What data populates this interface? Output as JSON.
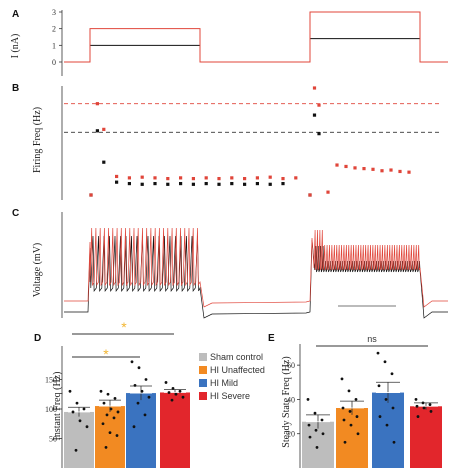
{
  "panels": {
    "a": "A",
    "b": "B",
    "c": "C",
    "d": "D",
    "e": "E"
  },
  "colors": {
    "black": "#111111",
    "red": "#e0453a",
    "sham": "#bdbdbd",
    "unaffected": "#f28a22",
    "mild": "#3a73c0",
    "severe": "#e2262c",
    "star": "#f2b632"
  },
  "chart_data": [
    {
      "id": "A",
      "type": "line",
      "ylabel": "I (nA)",
      "yticks": [
        "3",
        "2",
        "1",
        "0"
      ],
      "ylim": [
        0,
        3
      ],
      "series": [
        {
          "name": "",
          "color": "black",
          "steps": [
            [
              0,
              0
            ],
            [
              1,
              1
            ],
            [
              2,
              0
            ],
            [
              3,
              1.4
            ],
            [
              4,
              0
            ]
          ]
        },
        {
          "name": "",
          "color": "red",
          "steps": [
            [
              0,
              0
            ],
            [
              1,
              2
            ],
            [
              2,
              0
            ],
            [
              3,
              3
            ],
            [
              4,
              0
            ]
          ]
        }
      ]
    },
    {
      "id": "B",
      "type": "scatter",
      "ylabel": "Firing Freq (Hz)",
      "ref_lines": [
        {
          "value": 128,
          "color": "red"
        },
        {
          "value": 88,
          "color": "black"
        }
      ],
      "ylim": [
        0,
        150
      ],
      "series": [
        {
          "name": "",
          "color": "black",
          "points": [
            [
              0,
              0
            ],
            [
              0.5,
              90
            ],
            [
              1,
              46
            ],
            [
              2,
              18
            ],
            [
              3,
              16
            ],
            [
              4,
              15
            ],
            [
              5,
              16
            ],
            [
              6,
              15
            ],
            [
              7,
              16
            ],
            [
              8,
              15
            ],
            [
              9,
              16
            ],
            [
              10,
              15
            ],
            [
              11,
              16
            ],
            [
              12,
              15
            ],
            [
              13,
              16
            ],
            [
              14,
              15
            ],
            [
              15,
              16
            ],
            [
              30,
              0
            ],
            [
              30.5,
              112
            ],
            [
              31,
              86
            ]
          ]
        },
        {
          "name": "",
          "color": "red",
          "points": [
            [
              0,
              0
            ],
            [
              0.5,
              128
            ],
            [
              1,
              92
            ],
            [
              2,
              26
            ],
            [
              3,
              24
            ],
            [
              4,
              25
            ],
            [
              5,
              24
            ],
            [
              6,
              23
            ],
            [
              7,
              24
            ],
            [
              8,
              23
            ],
            [
              9,
              24
            ],
            [
              10,
              23
            ],
            [
              11,
              24
            ],
            [
              12,
              23
            ],
            [
              13,
              24
            ],
            [
              14,
              25
            ],
            [
              15,
              23
            ],
            [
              16,
              24
            ],
            [
              30,
              0
            ],
            [
              30.5,
              150
            ],
            [
              31,
              126
            ],
            [
              32,
              4
            ],
            [
              33,
              42
            ],
            [
              34,
              40
            ],
            [
              35,
              38
            ],
            [
              36,
              37
            ],
            [
              37,
              36
            ],
            [
              38,
              34
            ],
            [
              39,
              35
            ],
            [
              40,
              33
            ],
            [
              41,
              32
            ]
          ]
        }
      ]
    },
    {
      "id": "C",
      "type": "line",
      "ylabel": "Voltage (mV)",
      "series": [
        {
          "name": "",
          "color": "black"
        },
        {
          "name": "",
          "color": "red"
        }
      ]
    },
    {
      "id": "D",
      "type": "bar",
      "ylabel": "Instant Freq (Hz)",
      "yticks": [
        "150",
        "100",
        "50"
      ],
      "ylim": [
        0,
        200
      ],
      "categories": [
        "Sham control",
        "HI Unaffected",
        "HI Mild",
        "HI Severe"
      ],
      "values": [
        95,
        105,
        127,
        128
      ],
      "errors": [
        8,
        10,
        12,
        5
      ],
      "points": [
        [
          130,
          110,
          100,
          95,
          80,
          70,
          30
        ],
        [
          130,
          125,
          118,
          110,
          100,
          95,
          90,
          85,
          75,
          60,
          55,
          35
        ],
        [
          180,
          170,
          150,
          140,
          130,
          120,
          110,
          90,
          70
        ],
        [
          145,
          135,
          130,
          128,
          125,
          120,
          115
        ]
      ],
      "brackets": [
        {
          "from": 0,
          "to": 3,
          "label": "*"
        },
        {
          "from": 0,
          "to": 2,
          "label": "*"
        }
      ]
    },
    {
      "id": "E",
      "type": "bar",
      "ylabel": "Steady State Freq (Hz)",
      "yticks": [
        "60",
        "40",
        "20"
      ],
      "ylim": [
        0,
        70
      ],
      "values": [
        27,
        35,
        44,
        36
      ],
      "errors": [
        4,
        4,
        6,
        2
      ],
      "points": [
        [
          40,
          32,
          28,
          25,
          22,
          20,
          18,
          12
        ],
        [
          52,
          45,
          40,
          35,
          33,
          30,
          28,
          25,
          20,
          15
        ],
        [
          67,
          62,
          55,
          48,
          40,
          35,
          30,
          25,
          15
        ],
        [
          40,
          38,
          37,
          36,
          35,
          33,
          30
        ]
      ],
      "brackets": [
        {
          "from": 0,
          "to": 3,
          "label": "ns"
        }
      ]
    }
  ]
}
